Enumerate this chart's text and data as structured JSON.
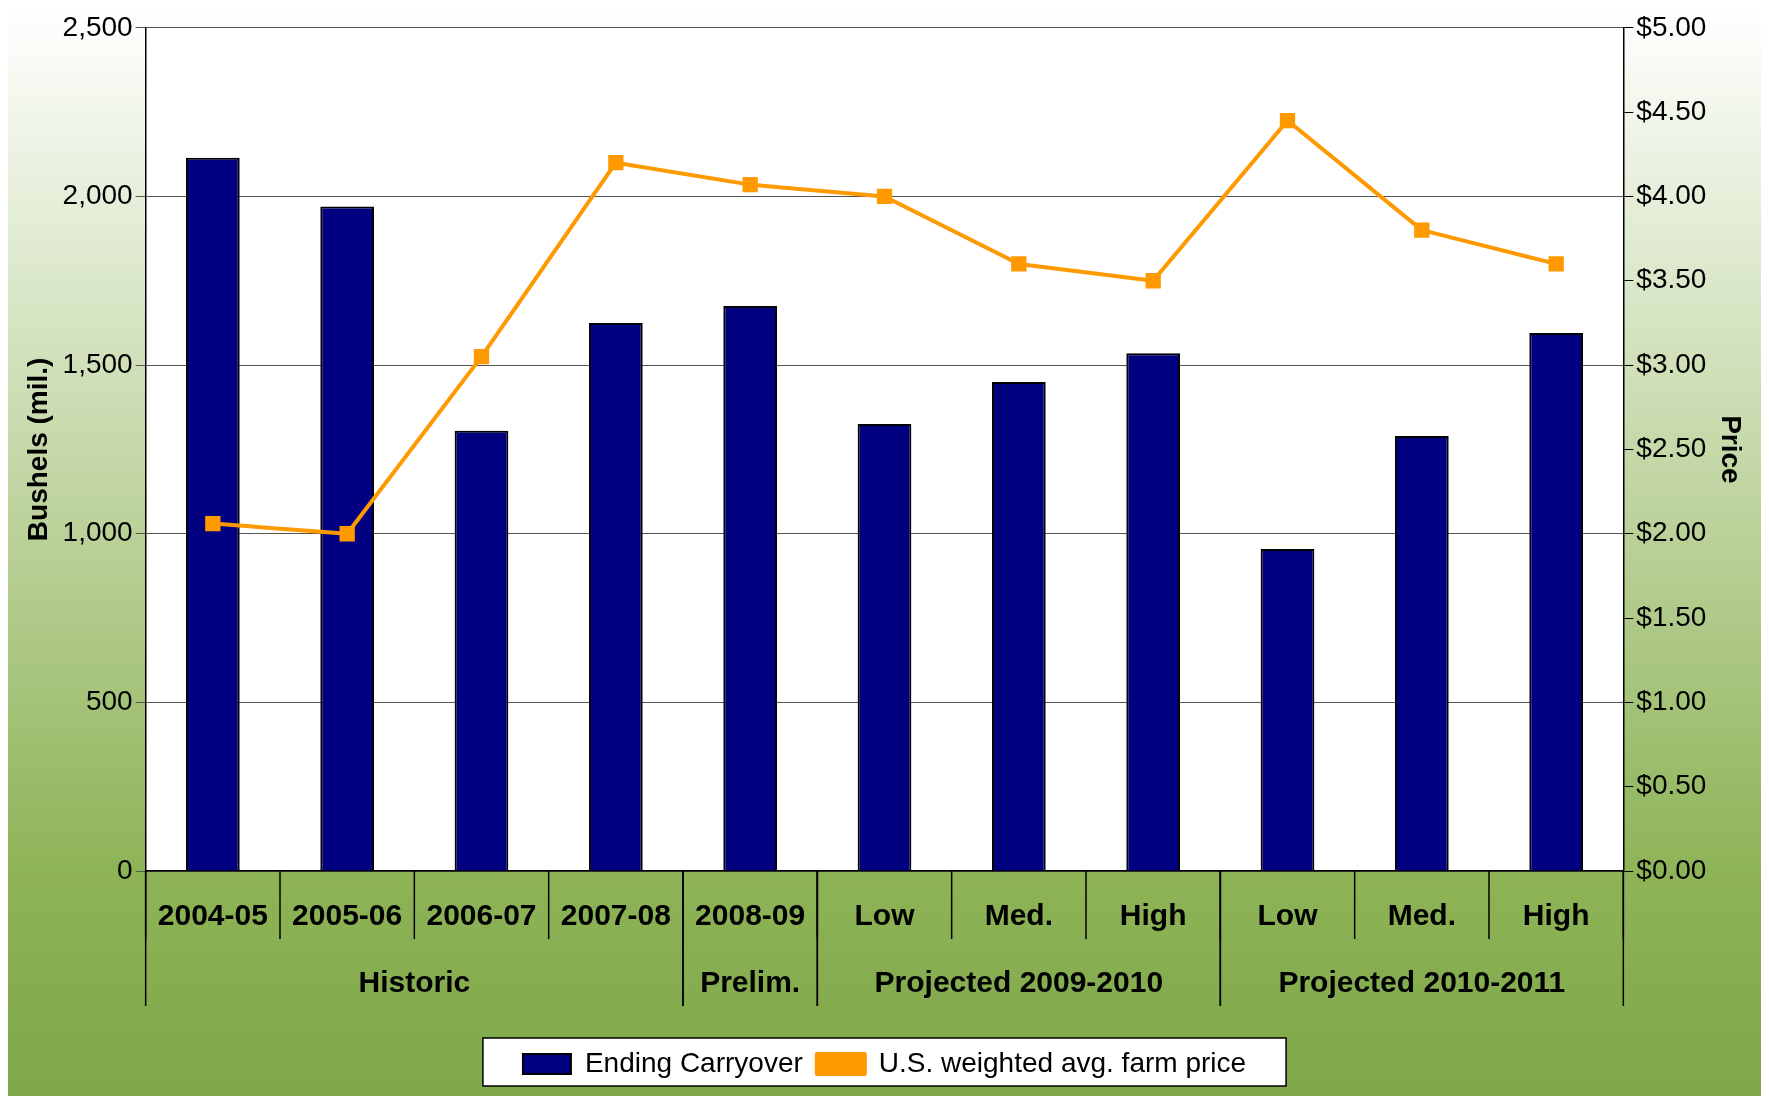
{
  "chart_data": {
    "type": "bar",
    "ylabel": "Bushels (mil.)",
    "y2label": "Price",
    "categories": [
      "2004-05",
      "2005-06",
      "2006-07",
      "2007-08",
      "2008-09",
      "Low",
      "Med.",
      "High",
      "Low",
      "Med.",
      "High"
    ],
    "series": [
      {
        "name": "Ending Carryover",
        "color": "#000080",
        "values": [
          2115,
          1970,
          1305,
          1625,
          1675,
          1325,
          1450,
          1535,
          955,
          1290,
          1595
        ]
      },
      {
        "name": "U.S. weighted avg. farm price",
        "type": "line",
        "axis": "y2",
        "color": "#ff9900",
        "marker": "square",
        "values": [
          2.06,
          2.0,
          3.05,
          4.2,
          4.07,
          4.0,
          3.6,
          3.5,
          4.45,
          3.8,
          3.6
        ]
      }
    ],
    "ylim": [
      0,
      2500
    ],
    "yticks": [
      {
        "value": 0,
        "label": "0"
      },
      {
        "value": 500,
        "label": "500"
      },
      {
        "value": 1000,
        "label": "1,000"
      },
      {
        "value": 1500,
        "label": "1,500"
      },
      {
        "value": 2000,
        "label": "2,000"
      },
      {
        "value": 2500,
        "label": "2,500"
      }
    ],
    "y2lim": [
      0,
      5
    ],
    "y2ticks": [
      {
        "value": 0,
        "label": "$0.00"
      },
      {
        "value": 0.5,
        "label": "$0.50"
      },
      {
        "value": 1,
        "label": "$1.00"
      },
      {
        "value": 1.5,
        "label": "$1.50"
      },
      {
        "value": 2,
        "label": "$2.00"
      },
      {
        "value": 2.5,
        "label": "$2.50"
      },
      {
        "value": 3,
        "label": "$3.00"
      },
      {
        "value": 3.5,
        "label": "$3.50"
      },
      {
        "value": 4,
        "label": "$4.00"
      },
      {
        "value": 4.5,
        "label": "$4.50"
      },
      {
        "value": 5,
        "label": "$5.00"
      }
    ],
    "annotations": [
      "Historic",
      "Prelim.",
      "Projected 2009-2010",
      "Projected 2010-2011"
    ],
    "grid": "y",
    "legend": "bottom"
  }
}
